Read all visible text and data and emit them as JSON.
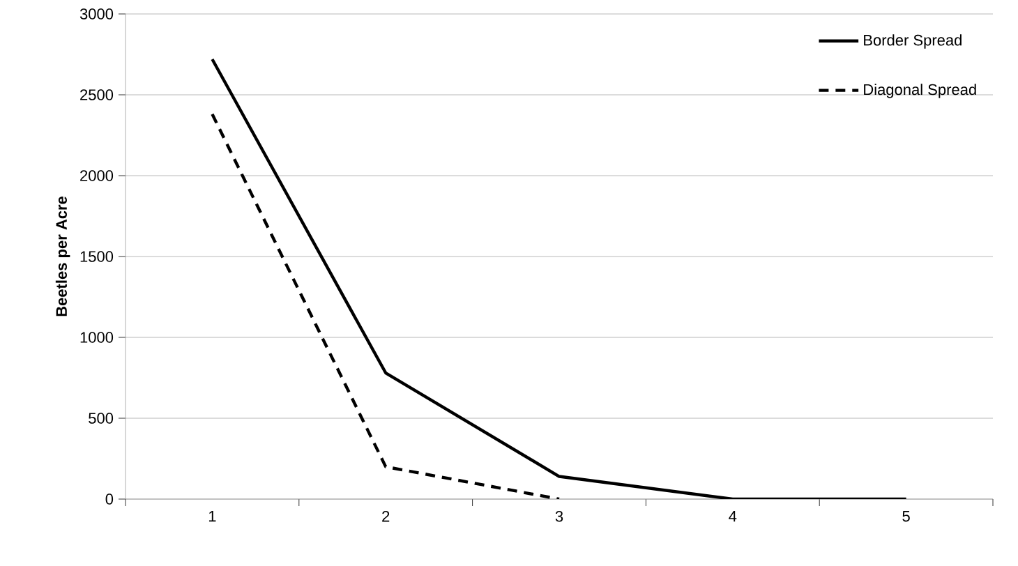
{
  "chart_data": {
    "type": "line",
    "ylabel": "Beetles per Acre",
    "categories": [
      "1",
      "2",
      "3",
      "4",
      "5"
    ],
    "series": [
      {
        "name": "Border Spread",
        "color": "#000000",
        "line_style": "solid",
        "values": [
          2720,
          780,
          140,
          0,
          0
        ]
      },
      {
        "name": "Diagonal Spread",
        "color": "#000000",
        "line_style": "dashed",
        "values": [
          2380,
          200,
          0,
          null,
          null
        ]
      }
    ],
    "ylim": [
      0,
      3000
    ],
    "yticks": [
      0,
      500,
      1000,
      1500,
      2000,
      2500,
      3000
    ],
    "grid": "y",
    "legend": "top right",
    "marker": "none"
  }
}
